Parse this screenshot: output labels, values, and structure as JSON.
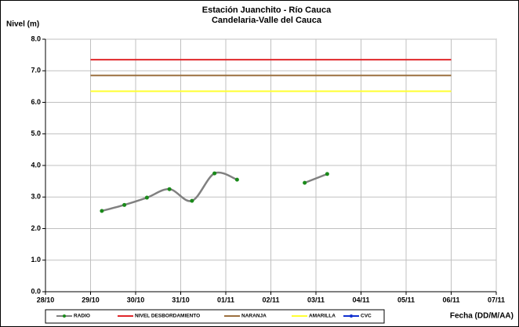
{
  "chart_data": {
    "type": "line",
    "title": "Estación Juanchito - Río Cauca",
    "subtitle": "Candelaria-Valle del Cauca",
    "y_label": "Nivel (m)",
    "x_label": "Fecha (DD/M/AA)",
    "xlim": [
      0,
      10
    ],
    "xticks": [
      {
        "value": 0,
        "label": "28/10"
      },
      {
        "value": 1,
        "label": "29/10"
      },
      {
        "value": 2,
        "label": "30/10"
      },
      {
        "value": 3,
        "label": "31/10"
      },
      {
        "value": 4,
        "label": "01/11"
      },
      {
        "value": 5,
        "label": "02/11"
      },
      {
        "value": 6,
        "label": "03/11"
      },
      {
        "value": 7,
        "label": "04/11"
      },
      {
        "value": 8,
        "label": "05/11"
      },
      {
        "value": 9,
        "label": "06/11"
      },
      {
        "value": 10,
        "label": "07/11"
      }
    ],
    "ylim": [
      0,
      8
    ],
    "yticks": [
      {
        "value": 0,
        "label": "0.0"
      },
      {
        "value": 1,
        "label": "1.0"
      },
      {
        "value": 2,
        "label": "2.0"
      },
      {
        "value": 3,
        "label": "3.0"
      },
      {
        "value": 4,
        "label": "4.0"
      },
      {
        "value": 5,
        "label": "5.0"
      },
      {
        "value": 6,
        "label": "6.0"
      },
      {
        "value": 7,
        "label": "7.0"
      },
      {
        "value": 8,
        "label": "8.0"
      }
    ],
    "grid": true,
    "legend": "bottom",
    "series": [
      {
        "name": "RADIO",
        "color": "#808080",
        "marker_color": "#1a8a1a",
        "smooth": true,
        "x": [
          1.25,
          1.75,
          2.25,
          2.75,
          3.25,
          3.75,
          4.25,
          5,
          5.75,
          6.25
        ],
        "values": [
          2.56,
          2.75,
          2.98,
          3.25,
          2.88,
          3.75,
          3.55,
          null,
          3.45,
          3.73
        ]
      },
      {
        "name": "NIVEL DESBORDAMIENTO",
        "color": "#e0262a",
        "x": [
          1,
          9
        ],
        "values": [
          7.35,
          7.35
        ]
      },
      {
        "name": "NARANJA",
        "color": "#9c7040",
        "x": [
          1,
          9
        ],
        "values": [
          6.85,
          6.85
        ]
      },
      {
        "name": "AMARILLA",
        "color": "#ffff33",
        "x": [
          1,
          9
        ],
        "values": [
          6.35,
          6.35
        ]
      },
      {
        "name": "CVC",
        "color": "#1030d0",
        "marker_color": "#1030d0",
        "x": [],
        "values": []
      }
    ]
  }
}
